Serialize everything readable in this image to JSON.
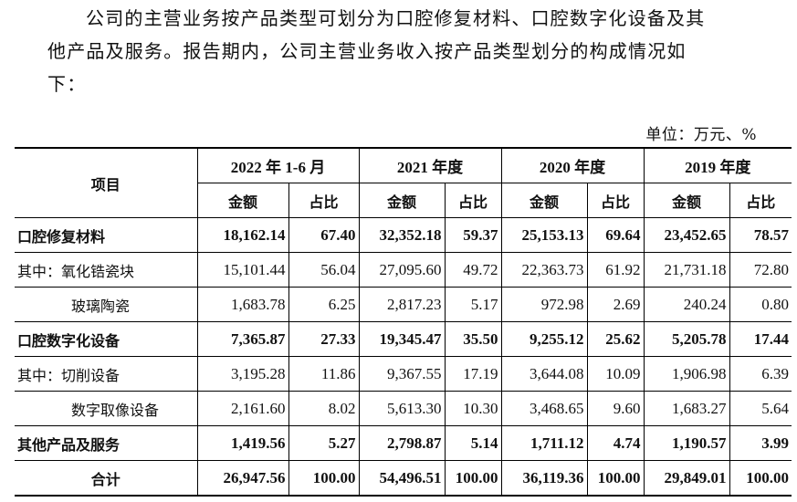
{
  "paragraph": {
    "line1": "公司的主营业务按产品类型可划分为口腔修复材料、口腔数字化设备及其",
    "line2": "他产品及服务。报告期内，公司主营业务收入按产品类型划分的构成情况如",
    "line3": "下："
  },
  "unit_label": "单位：万元、%",
  "table": {
    "item_header": "项目",
    "periods": [
      "2022 年 1-6 月",
      "2021 年度",
      "2020 年度",
      "2019 年度"
    ],
    "sub_headers": [
      "金额",
      "占比"
    ],
    "rows": [
      {
        "label": "口腔修复材料",
        "style": "bold",
        "values": [
          "18,162.14",
          "67.40",
          "32,352.18",
          "59.37",
          "25,153.13",
          "69.64",
          "23,452.65",
          "78.57"
        ]
      },
      {
        "label": "其中：氧化锆瓷块",
        "style": "normal",
        "values": [
          "15,101.44",
          "56.04",
          "27,095.60",
          "49.72",
          "22,363.73",
          "61.92",
          "21,731.18",
          "72.80"
        ]
      },
      {
        "label": "玻璃陶瓷",
        "style": "sub",
        "values": [
          "1,683.78",
          "6.25",
          "2,817.23",
          "5.17",
          "972.98",
          "2.69",
          "240.24",
          "0.80"
        ]
      },
      {
        "label": "口腔数字化设备",
        "style": "bold",
        "values": [
          "7,365.87",
          "27.33",
          "19,345.47",
          "35.50",
          "9,255.12",
          "25.62",
          "5,205.78",
          "17.44"
        ]
      },
      {
        "label": "其中：切削设备",
        "style": "normal",
        "values": [
          "3,195.28",
          "11.86",
          "9,367.55",
          "17.19",
          "3,644.08",
          "10.09",
          "1,906.98",
          "6.39"
        ]
      },
      {
        "label": "数字取像设备",
        "style": "sub",
        "values": [
          "2,161.60",
          "8.02",
          "5,613.30",
          "10.30",
          "3,468.65",
          "9.60",
          "1,683.27",
          "5.64"
        ]
      },
      {
        "label": "其他产品及服务",
        "style": "bold",
        "values": [
          "1,419.56",
          "5.27",
          "2,798.87",
          "5.14",
          "1,711.12",
          "4.74",
          "1,190.57",
          "3.99"
        ]
      },
      {
        "label": "合计",
        "style": "total",
        "values": [
          "26,947.56",
          "100.00",
          "54,496.51",
          "100.00",
          "36,119.36",
          "100.00",
          "29,849.01",
          "100.00"
        ]
      }
    ]
  }
}
